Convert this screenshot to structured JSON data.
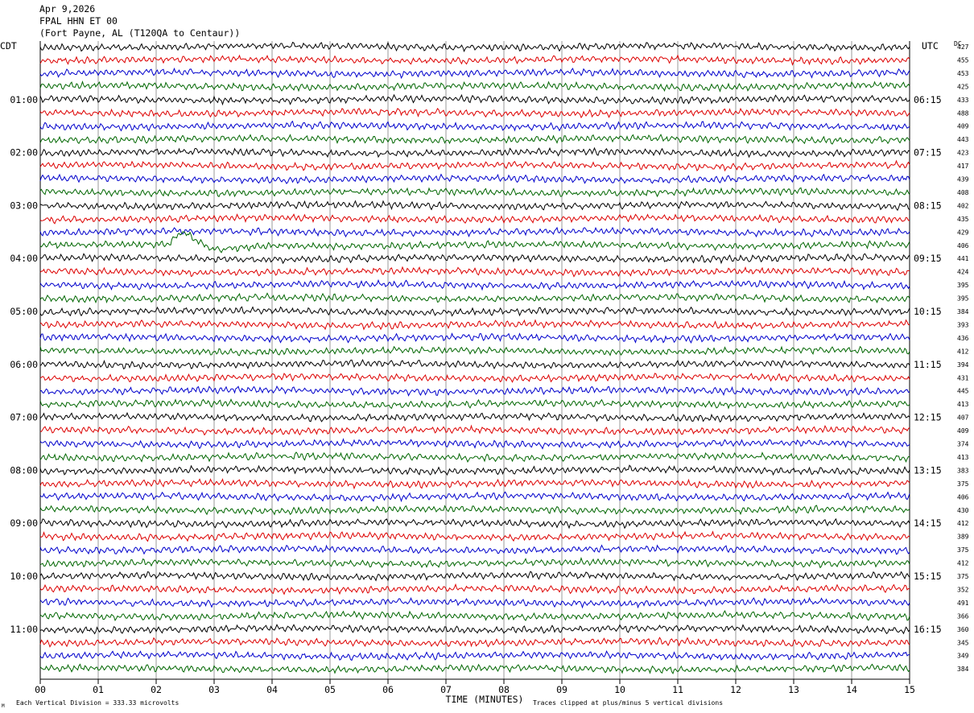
{
  "header": {
    "date": "Apr 9,2026",
    "station": "FPAL HHN ET 00",
    "location": "(Fort Payne, AL (T120QA to Centaur))"
  },
  "labels": {
    "left_tz": "CDT",
    "right_tz": "UTC",
    "dc_label": "DC",
    "x_title": "TIME (MINUTES)",
    "scale_note": "Each Vertical Division =  333.33 microvolts",
    "clip_note": "Traces clipped at plus/minus 5 vertical divisions",
    "corner_mark": "M"
  },
  "chart_data": {
    "type": "line",
    "title": "",
    "xlabel": "TIME (MINUTES)",
    "xlim": [
      0,
      15
    ],
    "x_ticks": [
      "00",
      "01",
      "02",
      "03",
      "04",
      "05",
      "06",
      "07",
      "08",
      "09",
      "10",
      "11",
      "12",
      "13",
      "14",
      "15"
    ],
    "left_hour_labels": [
      "01:00",
      "02:00",
      "03:00",
      "04:00",
      "05:00",
      "06:00",
      "07:00",
      "08:00",
      "09:00",
      "10:00",
      "11:00"
    ],
    "right_hour_labels": [
      "06:15",
      "07:15",
      "08:15",
      "09:15",
      "10:15",
      "11:15",
      "12:15",
      "13:15",
      "14:15",
      "15:15",
      "16:15"
    ],
    "trace_colors": [
      "#000000",
      "#dd0000",
      "#0000cc",
      "#006600"
    ],
    "dc_offsets": [
      427,
      455,
      453,
      425,
      433,
      488,
      409,
      443,
      423,
      417,
      439,
      408,
      402,
      435,
      429,
      406,
      441,
      424,
      395,
      395,
      384,
      393,
      436,
      412,
      394,
      431,
      445,
      413,
      407,
      409,
      374,
      413,
      383,
      375,
      406,
      430,
      412,
      389,
      375,
      412,
      375,
      352,
      491,
      366,
      360,
      345,
      349,
      384
    ],
    "events": [
      {
        "row": 15,
        "minute_start": 2.2,
        "minute_end": 3.9
      }
    ]
  }
}
